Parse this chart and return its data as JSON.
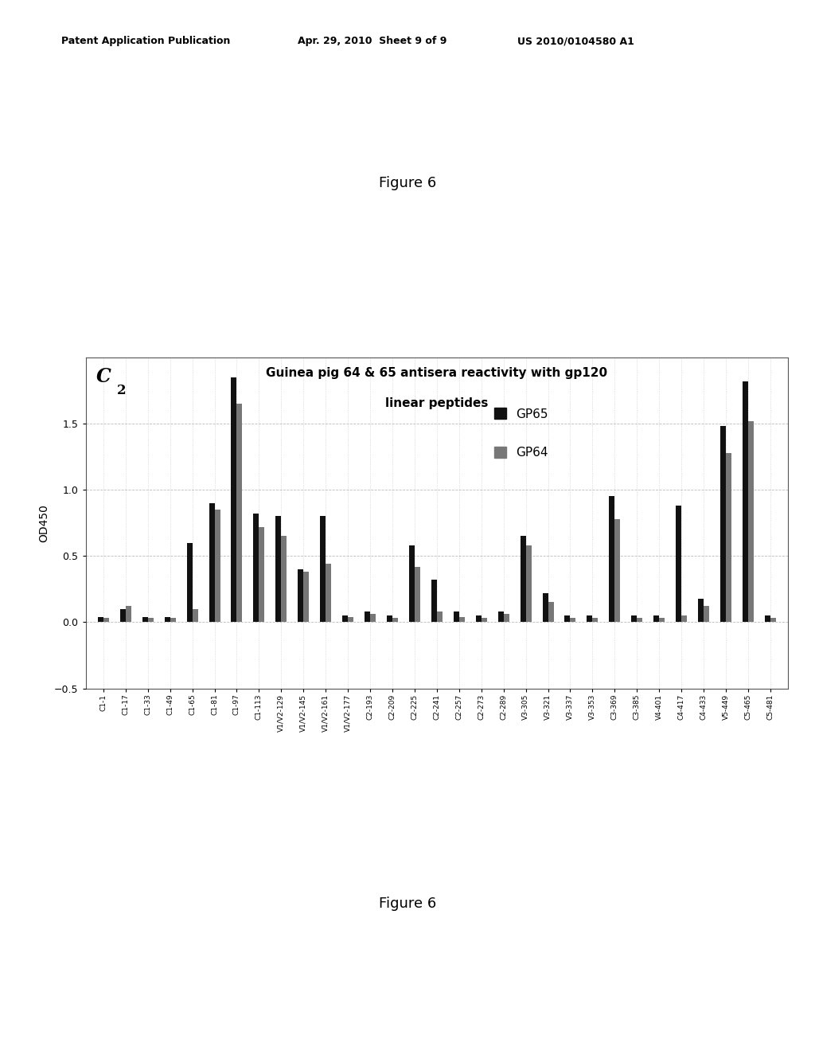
{
  "title_line1": "Guinea pig 64 & 65 antisera reactivity with gp120",
  "title_line2": "linear peptides",
  "panel_label": "C",
  "panel_subscript": "2",
  "ylabel": "OD450",
  "ylim": [
    -0.5,
    2.0
  ],
  "yticks": [
    -0.5,
    0,
    0.5,
    1,
    1.5
  ],
  "legend_gp65_label": "GP65",
  "legend_gp64_label": "GP64",
  "bar_color_gp65": "#111111",
  "bar_color_gp64": "#777777",
  "categories": [
    "C1-1",
    "C1-17",
    "C1-33",
    "C1-49",
    "C1-65",
    "C1-81",
    "C1-97",
    "C1-113",
    "V1/V2-129",
    "V1/V2-145",
    "V1/V2-161",
    "V1/V2-177",
    "C2-193",
    "C2-209",
    "C2-225",
    "C2-241",
    "C2-257",
    "C2-273",
    "C2-289",
    "V3-305",
    "V3-321",
    "V3-337",
    "V3-353",
    "C3-369",
    "C3-385",
    "V4-401",
    "C4-417",
    "C4-433",
    "V5-449",
    "C5-465",
    "C5-481"
  ],
  "gp65_values": [
    0.04,
    0.1,
    0.04,
    0.04,
    0.6,
    0.9,
    1.85,
    0.82,
    0.8,
    0.4,
    0.8,
    0.05,
    0.08,
    0.05,
    0.58,
    0.32,
    0.08,
    0.05,
    0.08,
    0.65,
    0.22,
    0.05,
    0.05,
    0.95,
    0.05,
    0.05,
    0.88,
    0.18,
    1.48,
    1.82,
    0.05
  ],
  "gp64_values": [
    0.03,
    0.12,
    0.03,
    0.03,
    0.1,
    0.85,
    1.65,
    0.72,
    0.65,
    0.38,
    0.44,
    0.04,
    0.06,
    0.03,
    0.42,
    0.08,
    0.04,
    0.03,
    0.06,
    0.58,
    0.15,
    0.03,
    0.03,
    0.78,
    0.03,
    0.03,
    0.05,
    0.12,
    1.28,
    1.52,
    0.03
  ],
  "header_left": "Patent Application Publication",
  "header_mid": "Apr. 29, 2010  Sheet 9 of 9",
  "header_right": "US 2010/0104580 A1",
  "figure_label": "Figure 6",
  "figure_bg": "#ffffff",
  "grid_color": "#aaaaaa"
}
